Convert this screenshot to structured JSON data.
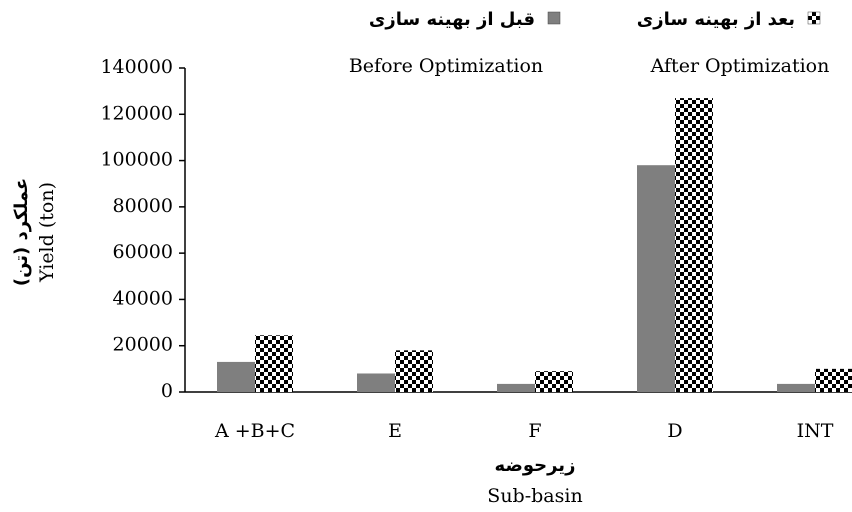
{
  "chart_data": {
    "type": "bar",
    "y_label": "عملکرد (تن)",
    "y_label_en": "Yield (ton)",
    "x_label": "زیرحوضه",
    "x_label_en": "Sub-basin",
    "categories": [
      "A +B+C",
      "E",
      "F",
      "D",
      "INT"
    ],
    "series": [
      {
        "name": "قبل از بهینه سازی",
        "name_en": "Before Optimization",
        "color": "#7f7f7f",
        "fill": "solid",
        "values": [
          13000,
          8000,
          3500,
          98000,
          3500
        ]
      },
      {
        "name": "بعد از بهینه سازی",
        "name_en": "After Optimization",
        "color": "#000000",
        "fill": "checker",
        "values": [
          24500,
          18000,
          9000,
          127000,
          10000
        ]
      }
    ],
    "ylim": [
      0,
      140000
    ],
    "yticks": [
      0,
      20000,
      40000,
      60000,
      80000,
      100000,
      120000,
      140000
    ],
    "grid": false,
    "legend": "top"
  }
}
